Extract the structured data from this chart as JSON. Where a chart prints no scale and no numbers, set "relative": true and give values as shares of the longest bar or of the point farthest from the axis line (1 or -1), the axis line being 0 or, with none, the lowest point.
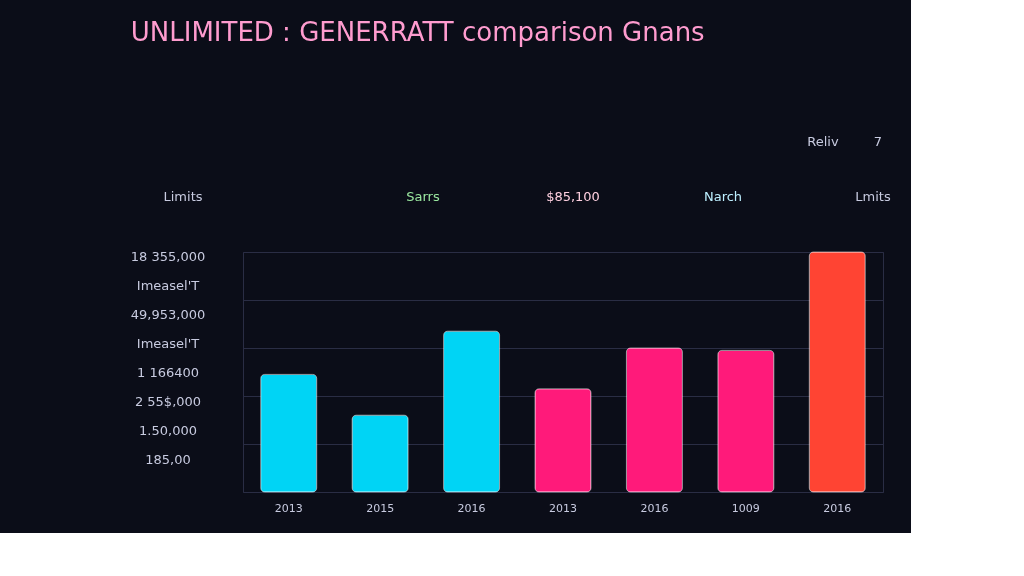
{
  "chart_data": {
    "type": "bar",
    "title": "UNLIMITED : GENERRATT comparison Gnans",
    "relative": true,
    "categories": [
      "2013",
      "2015",
      "2016",
      "2013",
      "2016",
      "1009",
      "2016"
    ],
    "values": [
      0.49,
      0.32,
      0.67,
      0.43,
      0.6,
      0.59,
      1
    ],
    "colors": [
      "#00d4f5",
      "#00d4f5",
      "#00d4f5",
      "#ff1a7a",
      "#ff1a7a",
      "#ff1a7a",
      "#ff4433"
    ],
    "grid": "y",
    "annotations": [
      "Reliv",
      "7",
      "Limits",
      "Sarrs",
      "$85,100",
      "Narch",
      "Lmits",
      "18 355,000",
      "Imeasel'T",
      "49,953,000",
      "Imeasel'T",
      "1 166400",
      "2 55$,000",
      "1.50,000",
      "185,00"
    ]
  }
}
